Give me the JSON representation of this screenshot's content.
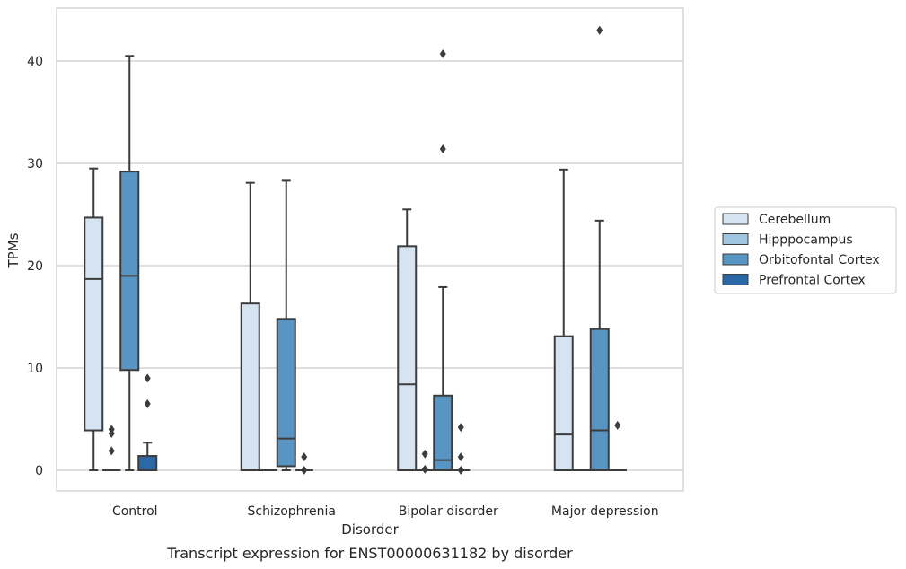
{
  "chart_data": {
    "type": "box",
    "caption": "Transcript expression for ENST00000631182 by disorder",
    "xlabel": "Disorder",
    "ylabel": "TPMs",
    "ylim": [
      -2,
      45
    ],
    "yticks": [
      0,
      10,
      20,
      30,
      40
    ],
    "grid": "horizontal",
    "legend_position": "right",
    "categories": [
      "Control",
      "Schizophrenia",
      "Bipolar disorder",
      "Major depression"
    ],
    "series": [
      {
        "name": "Cerebellum",
        "color": "#d6e3f1",
        "boxes": [
          {
            "category": "Control",
            "whisker_low": 0,
            "q1": 3.9,
            "median": 18.7,
            "q3": 24.7,
            "whisker_high": 29.5,
            "outliers": []
          },
          {
            "category": "Schizophrenia",
            "whisker_low": 0,
            "q1": 0,
            "median": 0,
            "q3": 16.3,
            "whisker_high": 28.1,
            "outliers": []
          },
          {
            "category": "Bipolar disorder",
            "whisker_low": 0,
            "q1": 0,
            "median": 8.4,
            "q3": 21.9,
            "whisker_high": 25.5,
            "outliers": []
          },
          {
            "category": "Major depression",
            "whisker_low": 0,
            "q1": 0,
            "median": 3.5,
            "q3": 13.1,
            "whisker_high": 29.4,
            "outliers": []
          }
        ]
      },
      {
        "name": "Hipppocampus",
        "color": "#9fc5df",
        "boxes": [
          {
            "category": "Control",
            "whisker_low": 0,
            "q1": 0,
            "median": 0,
            "q3": 0,
            "whisker_high": 0,
            "outliers": [
              1.9,
              3.6,
              4.0
            ]
          },
          {
            "category": "Schizophrenia",
            "whisker_low": 0,
            "q1": 0,
            "median": 0,
            "q3": 0,
            "whisker_high": 0,
            "outliers": []
          },
          {
            "category": "Bipolar disorder",
            "whisker_low": 0,
            "q1": 0,
            "median": 0,
            "q3": 0,
            "whisker_high": 0,
            "outliers": [
              0.1,
              1.6
            ]
          },
          {
            "category": "Major depression",
            "whisker_low": 0,
            "q1": 0,
            "median": 0,
            "q3": 0,
            "whisker_high": 0,
            "outliers": []
          }
        ]
      },
      {
        "name": "Orbitofontal Cortex",
        "color": "#5895c3",
        "boxes": [
          {
            "category": "Control",
            "whisker_low": 0,
            "q1": 9.8,
            "median": 19.0,
            "q3": 29.2,
            "whisker_high": 40.5,
            "outliers": []
          },
          {
            "category": "Schizophrenia",
            "whisker_low": 0,
            "q1": 0.4,
            "median": 3.1,
            "q3": 14.8,
            "whisker_high": 28.3,
            "outliers": []
          },
          {
            "category": "Bipolar disorder",
            "whisker_low": 0,
            "q1": 0,
            "median": 1.0,
            "q3": 7.3,
            "whisker_high": 17.9,
            "outliers": [
              31.4,
              40.7
            ]
          },
          {
            "category": "Major depression",
            "whisker_low": 0,
            "q1": 0,
            "median": 3.9,
            "q3": 13.8,
            "whisker_high": 24.4,
            "outliers": [
              43.0
            ]
          }
        ]
      },
      {
        "name": "Prefrontal Cortex",
        "color": "#2b68a6",
        "boxes": [
          {
            "category": "Control",
            "whisker_low": 0,
            "q1": 0,
            "median": 0,
            "q3": 1.4,
            "whisker_high": 2.7,
            "outliers": [
              6.5,
              9.0
            ]
          },
          {
            "category": "Schizophrenia",
            "whisker_low": 0,
            "q1": 0,
            "median": 0,
            "q3": 0,
            "whisker_high": 0,
            "outliers": [
              0.0,
              1.3
            ]
          },
          {
            "category": "Bipolar disorder",
            "whisker_low": 0,
            "q1": 0,
            "median": 0,
            "q3": 0,
            "whisker_high": 0,
            "outliers": [
              0.0,
              1.3,
              4.2
            ]
          },
          {
            "category": "Major depression",
            "whisker_low": 0,
            "q1": 0,
            "median": 0,
            "q3": 0,
            "whisker_high": 0,
            "outliers": [
              4.4
            ]
          }
        ]
      }
    ]
  }
}
